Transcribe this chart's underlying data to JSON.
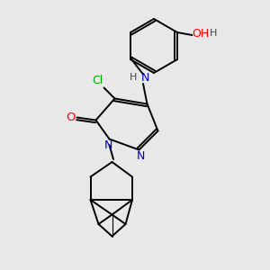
{
  "bg_color": "#e8e8e8",
  "atom_colors": {
    "N": "#0000cc",
    "O_carbonyl": "#ff0000",
    "O_hydroxyl": "#ff0000",
    "Cl": "#00aa00",
    "C": "#000000",
    "H": "#555555"
  },
  "figsize": [
    3.0,
    3.0
  ],
  "dpi": 100
}
